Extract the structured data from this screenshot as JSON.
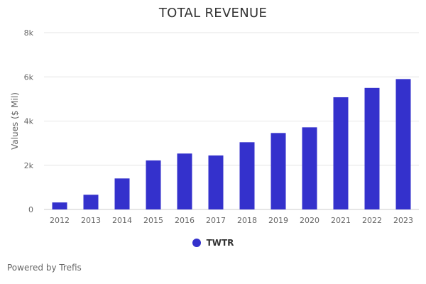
{
  "chart_data": {
    "type": "bar",
    "title": "TOTAL REVENUE",
    "xlabel": "",
    "ylabel": "Values ($ Mil)",
    "categories": [
      "2012",
      "2013",
      "2014",
      "2015",
      "2016",
      "2017",
      "2018",
      "2019",
      "2020",
      "2021",
      "2022",
      "2023"
    ],
    "series": [
      {
        "name": "TWTR",
        "values": [
          317,
          665,
          1403,
          2218,
          2530,
          2443,
          3042,
          3459,
          3716,
          5077,
          5500,
          5900
        ]
      }
    ],
    "ylim": [
      0,
      8000
    ],
    "yticks": [
      0,
      2000,
      4000,
      6000,
      8000
    ],
    "ytick_labels": [
      "0",
      "2k",
      "4k",
      "6k",
      "8k"
    ],
    "grid": true,
    "legend_position": "bottom-center"
  },
  "colors": {
    "bar": "#3431cc",
    "grid": "#e6e6e6",
    "text": "#666666"
  },
  "footer": {
    "credit": "Powered by Trefis"
  }
}
